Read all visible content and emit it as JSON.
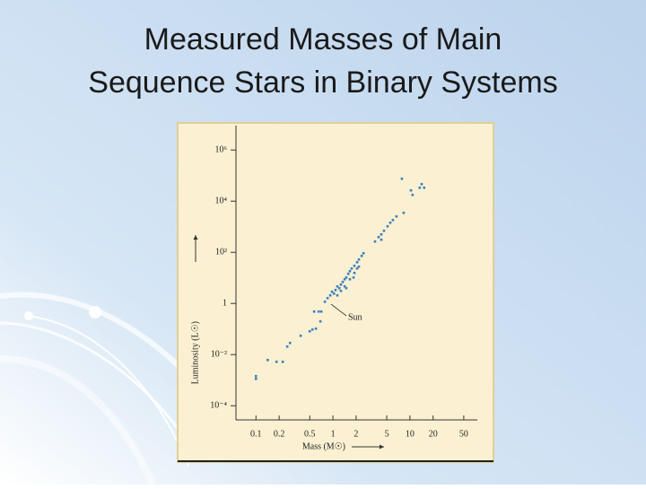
{
  "chart_data": {
    "type": "scatter",
    "title": [
      "Measured Masses of Main",
      "Sequence Stars in Binary Systems"
    ],
    "x_label": "Mass (M☉)",
    "y_label": "Luminosity (L☉)",
    "annotation": "Sun",
    "xscale": "log",
    "yscale": "log",
    "color": "#3a7fc0",
    "xlim": [
      0.055,
      75
    ],
    "ylim": [
      2.8e-05,
      9000000
    ],
    "xticks": [
      0.1,
      0.2,
      0.5,
      1,
      2,
      5,
      10,
      20,
      50
    ],
    "yticks": [
      {
        "value": 0.0001,
        "label": "10⁻⁴"
      },
      {
        "value": 0.01,
        "label": "10⁻²"
      },
      1,
      {
        "value": 100,
        "label": "10²"
      },
      {
        "value": 10000,
        "label": "10⁴"
      },
      {
        "value": 1000000,
        "label": "10⁶"
      }
    ],
    "x": [
      0.1,
      0.1,
      0.142,
      0.185,
      0.223,
      0.255,
      0.277,
      0.381,
      0.499,
      0.541,
      0.601,
      0.687,
      0.57,
      0.652,
      0.706,
      0.786,
      0.851,
      0.923,
      0.973,
      1.03,
      1.08,
      1.14,
      1.21,
      1.27,
      1.34,
      1.42,
      1.49,
      1.58,
      1.66,
      1.75,
      1.9,
      2.06,
      2.17,
      2.36,
      2.49,
      1.14,
      1.27,
      1.42,
      1.66,
      1.9,
      2.17,
      3.52,
      3.92,
      4.25,
      4.6,
      5.12,
      5.55,
      6.01,
      6.69,
      8.29,
      4.25,
      10.3,
      10.8,
      13.4,
      14.2,
      15.3,
      7.86,
      2.06,
      1.85,
      1.49
    ],
    "values": [
      0.00144,
      0.00113,
      0.00615,
      0.00524,
      0.00524,
      0.0207,
      0.0286,
      0.0546,
      0.0817,
      0.096,
      0.104,
      0.199,
      0.483,
      0.483,
      0.483,
      1.17,
      1.62,
      2.07,
      2.86,
      2.43,
      3.36,
      4.64,
      3.95,
      5.46,
      6.95,
      8.86,
      10.4,
      14.4,
      18.3,
      23.4,
      29.8,
      41.1,
      52.4,
      72.4,
      92.2,
      2.07,
      3.1,
      4.64,
      8.86,
      15.6,
      27.5,
      264,
      395,
      503,
      695,
      1040,
      1440,
      1830,
      2530,
      3500,
      310,
      26400,
      17600,
      33600,
      46400,
      33600,
      75300,
      23.4,
      10.4,
      3.95
    ]
  }
}
